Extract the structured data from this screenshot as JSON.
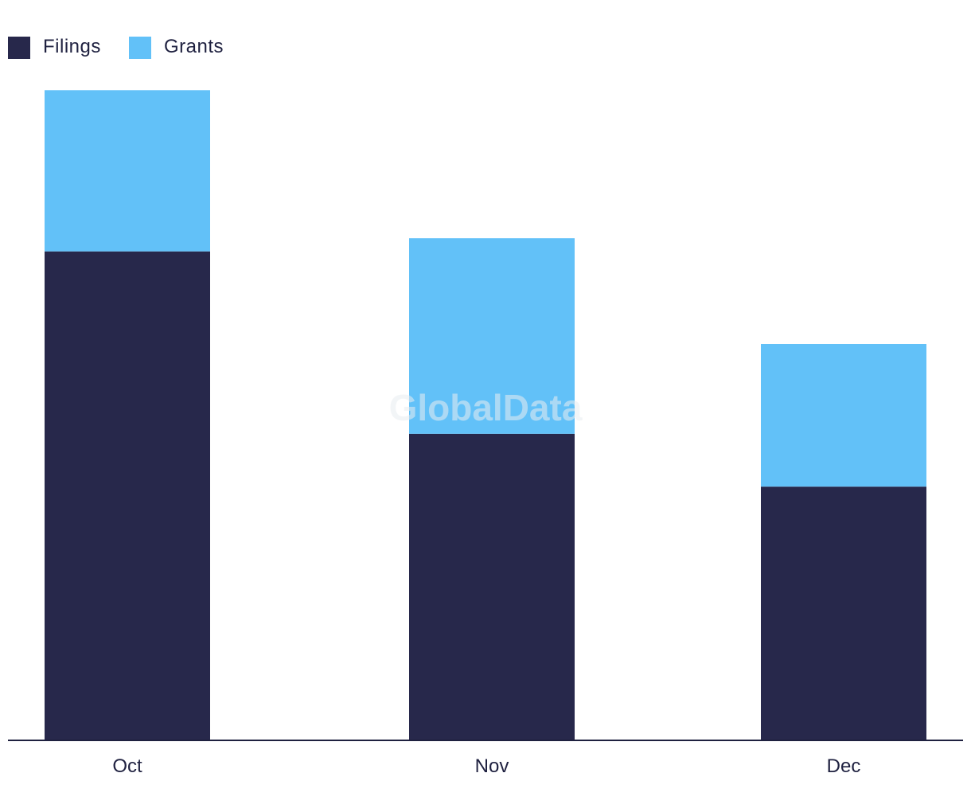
{
  "chart_data": {
    "type": "bar",
    "stacked": true,
    "categories": [
      "Oct",
      "Nov",
      "Dec"
    ],
    "series": [
      {
        "name": "Filings",
        "values": [
          185,
          116,
          96
        ],
        "color": "#27284b"
      },
      {
        "name": "Grants",
        "values": [
          61,
          74,
          54
        ],
        "color": "#62c1f8"
      }
    ],
    "title": "",
    "xlabel": "",
    "ylabel": "",
    "ylim": [
      0,
      250
    ],
    "grid": false,
    "legend": "top-left",
    "watermark": "GlobalData"
  }
}
